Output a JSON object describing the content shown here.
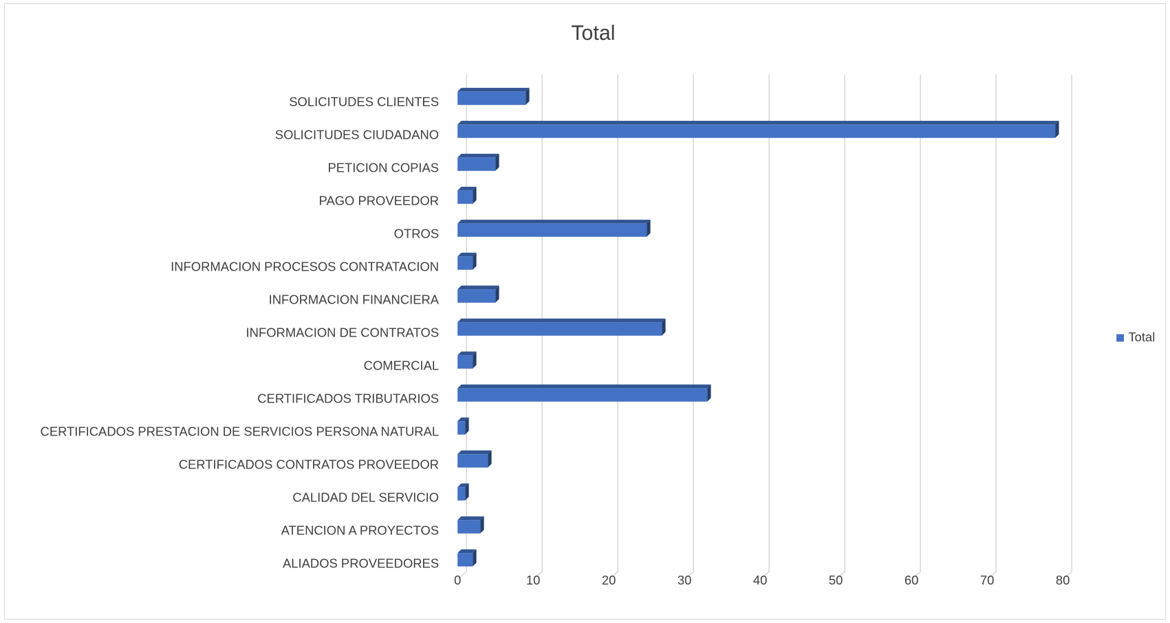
{
  "chart_data": {
    "type": "bar3d-horizontal",
    "title": "Total",
    "categories": [
      "ALIADOS PROVEEDORES",
      "ATENCION A PROYECTOS",
      "CALIDAD DEL SERVICIO",
      "CERTIFICADOS CONTRATOS PROVEEDOR",
      "CERTIFICADOS PRESTACION DE SERVICIOS PERSONA NATURAL",
      "CERTIFICADOS TRIBUTARIOS",
      "COMERCIAL",
      "INFORMACION DE CONTRATOS",
      "INFORMACION FINANCIERA",
      "INFORMACION PROCESOS CONTRATACION",
      "OTROS",
      "PAGO PROVEEDOR",
      "PETICION COPIAS",
      "SOLICITUDES CIUDADANO",
      "SOLICITUDES CLIENTES"
    ],
    "series": [
      {
        "name": "Total",
        "color": "#4472c4",
        "values": [
          2,
          3,
          1,
          4,
          1,
          33,
          2,
          27,
          5,
          2,
          25,
          2,
          5,
          79,
          9
        ]
      }
    ],
    "xlim": [
      0,
      80
    ],
    "xticks": [
      0,
      10,
      20,
      30,
      40,
      50,
      60,
      70,
      80
    ],
    "grid": true,
    "legend": "right"
  }
}
